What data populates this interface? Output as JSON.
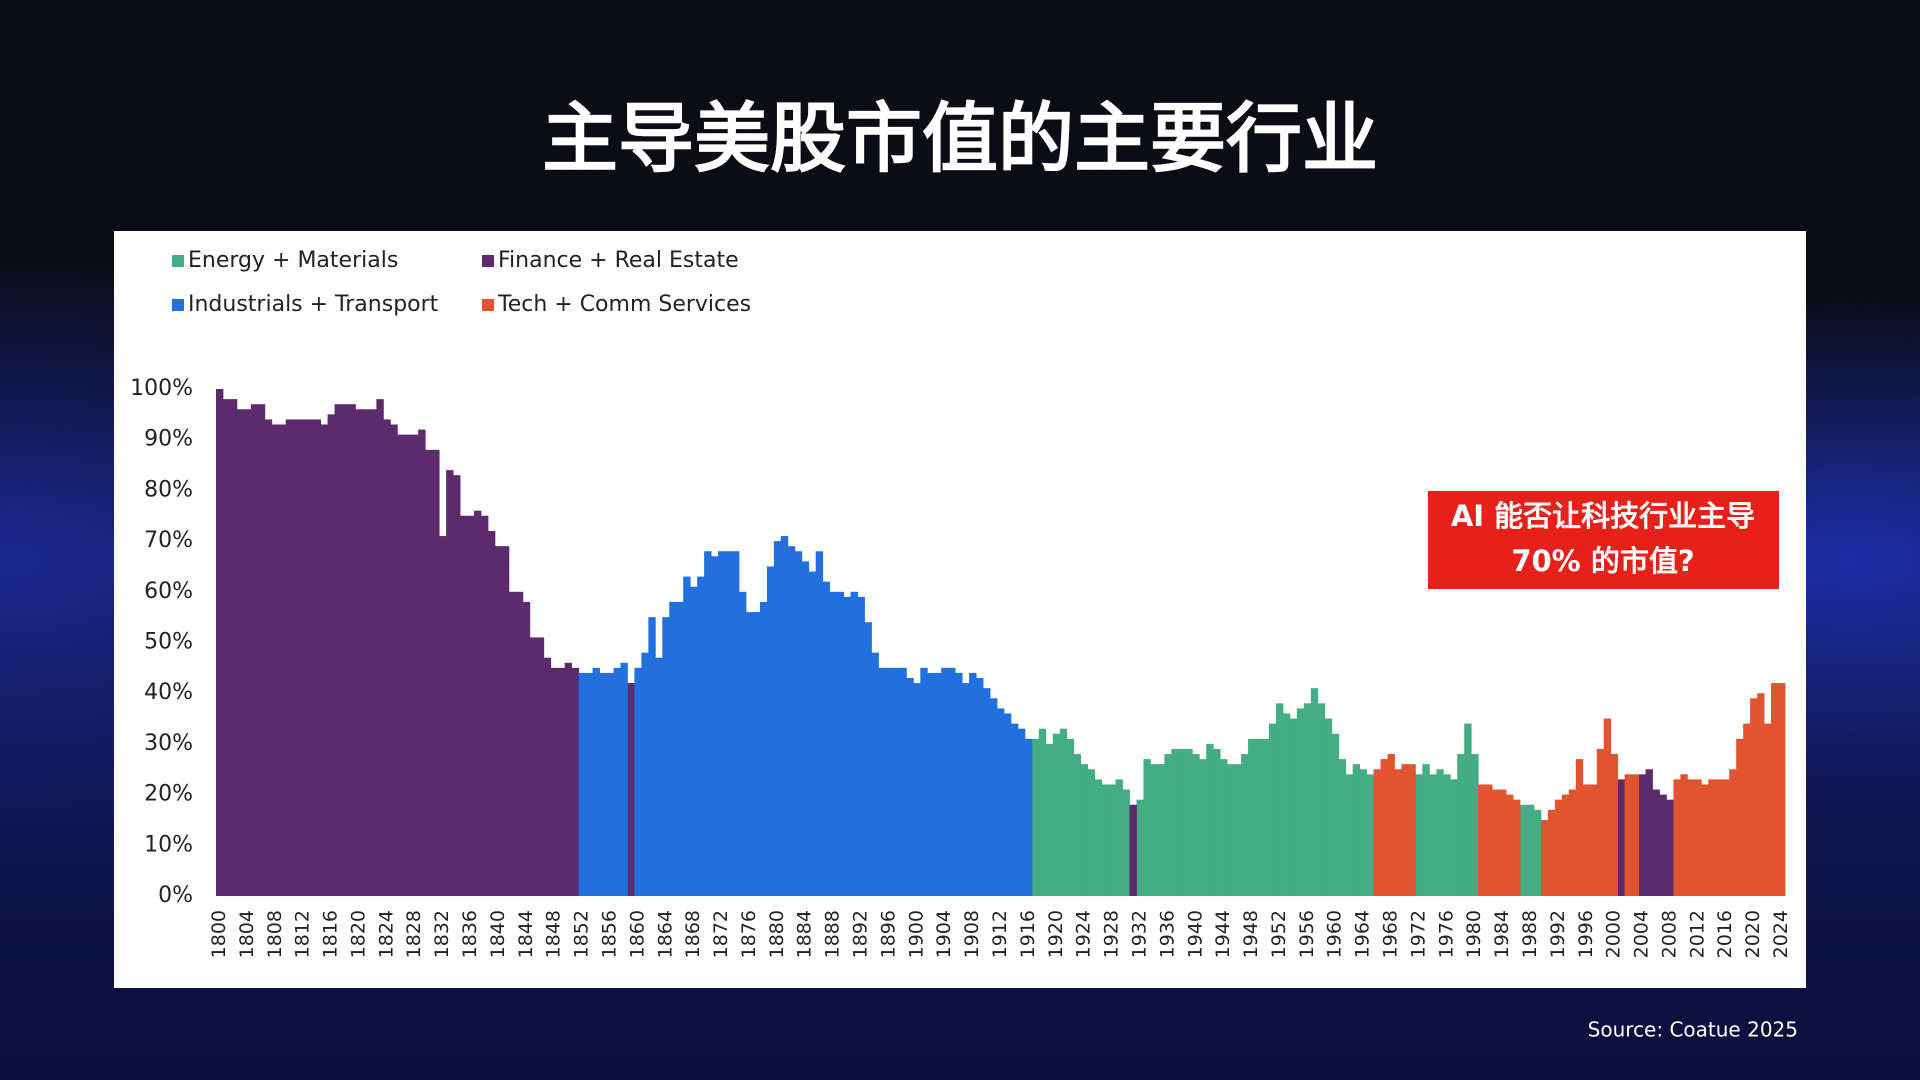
{
  "chart_data": {
    "type": "bar",
    "title": "主导美股市值的主要行业",
    "annotation": [
      "AI 能否让科技行业主导",
      "70% 的市值?"
    ],
    "source": "Source: Coatue 2025",
    "ylim": [
      0,
      100
    ],
    "yticks": [
      {
        "value": 0,
        "label": "0%"
      },
      {
        "value": 10,
        "label": "10%"
      },
      {
        "value": 20,
        "label": "20%"
      },
      {
        "value": 30,
        "label": "30%"
      },
      {
        "value": 40,
        "label": "40%"
      },
      {
        "value": 50,
        "label": "50%"
      },
      {
        "value": 60,
        "label": "60%"
      },
      {
        "value": 70,
        "label": "70%"
      },
      {
        "value": 80,
        "label": "80%"
      },
      {
        "value": 90,
        "label": "90%"
      },
      {
        "value": 100,
        "label": "100%"
      }
    ],
    "grid": false,
    "categories": [
      "1800",
      null,
      null,
      null,
      "1804",
      null,
      null,
      null,
      "1808",
      null,
      null,
      null,
      "1812",
      null,
      null,
      null,
      "1816",
      null,
      null,
      null,
      "1820",
      null,
      null,
      null,
      "1824",
      null,
      null,
      null,
      "1828",
      null,
      null,
      null,
      "1832",
      null,
      null,
      null,
      "1836",
      null,
      null,
      null,
      "1840",
      null,
      null,
      null,
      "1844",
      null,
      null,
      null,
      "1848",
      null,
      null,
      null,
      "1852",
      null,
      null,
      null,
      "1856",
      null,
      null,
      null,
      "1860",
      null,
      null,
      null,
      "1864",
      null,
      null,
      null,
      "1868",
      null,
      null,
      null,
      "1872",
      null,
      null,
      null,
      "1876",
      null,
      null,
      null,
      "1880",
      null,
      null,
      null,
      "1884",
      null,
      null,
      null,
      "1888",
      null,
      null,
      null,
      "1892",
      null,
      null,
      null,
      "1896",
      null,
      null,
      null,
      "1900",
      null,
      null,
      null,
      "1904",
      null,
      null,
      null,
      "1908",
      null,
      null,
      null,
      "1912",
      null,
      null,
      null,
      "1916",
      null,
      null,
      null,
      "1920",
      null,
      null,
      null,
      "1924",
      null,
      null,
      null,
      "1928",
      null,
      null,
      null,
      "1932",
      null,
      null,
      null,
      "1936",
      null,
      null,
      null,
      "1940",
      null,
      null,
      null,
      "1944",
      null,
      null,
      null,
      "1948",
      null,
      null,
      null,
      "1952",
      null,
      null,
      null,
      "1956",
      null,
      null,
      null,
      "1960",
      null,
      null,
      null,
      "1964",
      null,
      null,
      null,
      "1968",
      null,
      null,
      null,
      "1972",
      null,
      null,
      null,
      "1976",
      null,
      null,
      null,
      "1980",
      null,
      null,
      null,
      "1984",
      null,
      null,
      null,
      "1988",
      null,
      null,
      null,
      "1992",
      null,
      null,
      null,
      "1996",
      null,
      null,
      null,
      "2000",
      null,
      null,
      null,
      "2004",
      null,
      null,
      null,
      "2008",
      null,
      null,
      null,
      "2012",
      null,
      null,
      null,
      "2016",
      null,
      null,
      null,
      "2020",
      null,
      null,
      null,
      "2024"
    ],
    "series": [
      {
        "name": "Energy + Materials",
        "color": "#45ad83",
        "values": [
          null,
          null,
          null,
          null,
          null,
          null,
          null,
          null,
          null,
          null,
          null,
          null,
          null,
          null,
          null,
          null,
          null,
          null,
          null,
          null,
          null,
          null,
          null,
          null,
          null,
          null,
          null,
          null,
          null,
          null,
          null,
          null,
          null,
          null,
          null,
          null,
          null,
          null,
          null,
          null,
          null,
          null,
          null,
          null,
          null,
          null,
          null,
          null,
          null,
          null,
          null,
          null,
          null,
          null,
          null,
          null,
          null,
          null,
          null,
          null,
          null,
          null,
          null,
          null,
          null,
          null,
          null,
          null,
          null,
          null,
          null,
          null,
          null,
          null,
          null,
          null,
          null,
          null,
          null,
          null,
          null,
          null,
          null,
          null,
          null,
          null,
          null,
          null,
          null,
          null,
          null,
          null,
          null,
          null,
          null,
          null,
          null,
          null,
          null,
          null,
          null,
          null,
          null,
          null,
          null,
          null,
          null,
          null,
          null,
          null,
          null,
          null,
          null,
          null,
          null,
          null,
          null,
          31,
          33,
          30,
          32,
          33,
          31,
          28,
          26,
          25,
          23,
          22,
          22,
          23,
          21,
          null,
          19,
          27,
          26,
          26,
          28,
          29,
          29,
          29,
          28,
          27,
          30,
          29,
          27,
          26,
          26,
          28,
          31,
          31,
          31,
          34,
          38,
          36,
          35,
          37,
          38,
          41,
          38,
          35,
          32,
          27,
          24,
          26,
          25,
          24,
          null,
          null,
          null,
          null,
          null,
          null,
          24,
          26,
          24,
          25,
          24,
          23,
          28,
          34,
          28,
          null,
          null,
          null,
          null,
          null,
          null,
          18,
          18,
          17,
          null,
          null,
          null,
          null,
          null,
          null,
          null,
          null,
          null,
          null,
          null,
          null,
          null,
          null,
          null,
          null,
          null,
          null,
          null,
          null,
          null,
          null,
          null,
          null,
          null,
          null,
          null,
          null,
          null,
          null,
          null,
          null,
          null,
          null,
          null
        ]
      },
      {
        "name": "Finance + Real Estate",
        "color": "#5e2a6e",
        "values": [
          100,
          98,
          98,
          96,
          96,
          97,
          97,
          94,
          93,
          93,
          94,
          94,
          94,
          94,
          94,
          93,
          95,
          97,
          97,
          97,
          96,
          96,
          96,
          98,
          94,
          93,
          91,
          91,
          91,
          92,
          88,
          88,
          71,
          84,
          83,
          75,
          75,
          76,
          75,
          72,
          69,
          69,
          60,
          60,
          58,
          51,
          51,
          47,
          45,
          45,
          46,
          45,
          null,
          null,
          null,
          null,
          null,
          null,
          null,
          42,
          null,
          null,
          null,
          null,
          null,
          null,
          null,
          null,
          null,
          null,
          null,
          null,
          null,
          null,
          null,
          null,
          null,
          null,
          null,
          null,
          null,
          null,
          null,
          null,
          null,
          null,
          null,
          null,
          null,
          null,
          null,
          null,
          null,
          null,
          null,
          null,
          null,
          null,
          null,
          null,
          null,
          null,
          null,
          null,
          null,
          null,
          null,
          null,
          null,
          null,
          null,
          null,
          null,
          null,
          null,
          null,
          null,
          null,
          null,
          null,
          null,
          null,
          null,
          null,
          null,
          null,
          null,
          null,
          null,
          null,
          null,
          18,
          null,
          null,
          null,
          null,
          null,
          null,
          null,
          null,
          null,
          null,
          null,
          null,
          null,
          null,
          null,
          null,
          null,
          null,
          null,
          null,
          null,
          null,
          null,
          null,
          null,
          null,
          null,
          null,
          null,
          null,
          null,
          null,
          null,
          null,
          null,
          null,
          null,
          null,
          null,
          null,
          null,
          null,
          null,
          null,
          null,
          null,
          null,
          null,
          null,
          null,
          null,
          null,
          null,
          null,
          null,
          null,
          null,
          null,
          null,
          null,
          null,
          null,
          null,
          null,
          null,
          null,
          null,
          null,
          null,
          23,
          null,
          null,
          24,
          25,
          21,
          20,
          19,
          null,
          null,
          null,
          null,
          null,
          null,
          null,
          null,
          null,
          null,
          null,
          null,
          null,
          null,
          null,
          null
        ]
      },
      {
        "name": "Industrials + Transport",
        "color": "#2270dd",
        "values": [
          null,
          null,
          null,
          null,
          null,
          null,
          null,
          null,
          null,
          null,
          null,
          null,
          null,
          null,
          null,
          null,
          null,
          null,
          null,
          null,
          null,
          null,
          null,
          null,
          null,
          null,
          null,
          null,
          null,
          null,
          null,
          null,
          null,
          null,
          null,
          null,
          null,
          null,
          null,
          null,
          null,
          null,
          null,
          null,
          null,
          null,
          null,
          null,
          null,
          null,
          null,
          null,
          44,
          44,
          45,
          44,
          44,
          45,
          46,
          null,
          45,
          48,
          55,
          47,
          55,
          58,
          58,
          63,
          61,
          63,
          68,
          67,
          68,
          68,
          68,
          60,
          56,
          56,
          58,
          65,
          70,
          71,
          69,
          68,
          66,
          64,
          68,
          62,
          60,
          60,
          59,
          60,
          59,
          54,
          48,
          45,
          45,
          45,
          45,
          43,
          42,
          45,
          44,
          44,
          45,
          45,
          44,
          42,
          44,
          43,
          41,
          39,
          37,
          36,
          34,
          33,
          31,
          null,
          null,
          null,
          null,
          null,
          null,
          null,
          null,
          null,
          null,
          null,
          null,
          null,
          null,
          null,
          null,
          null,
          null,
          null,
          null,
          null,
          null,
          null,
          null,
          null,
          null,
          null,
          null,
          null,
          null,
          null,
          null,
          null,
          null,
          null,
          null,
          null,
          null,
          null,
          null,
          null,
          null,
          null,
          null,
          null,
          null,
          null,
          null,
          null,
          null,
          null,
          null,
          null,
          null,
          null,
          null,
          null,
          null,
          null,
          null,
          null,
          null,
          null,
          null,
          null,
          null,
          null,
          null,
          null,
          null,
          null,
          null,
          null,
          null,
          null,
          null,
          null,
          null,
          null,
          null,
          null,
          null,
          null,
          null,
          null,
          null,
          null,
          null,
          null,
          null,
          null,
          null,
          null,
          null,
          null,
          null,
          null,
          null,
          null,
          null,
          null,
          null,
          null,
          null,
          null,
          null,
          null,
          null
        ]
      },
      {
        "name": "Tech + Comm Services",
        "color": "#e05530",
        "values": [
          null,
          null,
          null,
          null,
          null,
          null,
          null,
          null,
          null,
          null,
          null,
          null,
          null,
          null,
          null,
          null,
          null,
          null,
          null,
          null,
          null,
          null,
          null,
          null,
          null,
          null,
          null,
          null,
          null,
          null,
          null,
          null,
          null,
          null,
          null,
          null,
          null,
          null,
          null,
          null,
          null,
          null,
          null,
          null,
          null,
          null,
          null,
          null,
          null,
          null,
          null,
          null,
          null,
          null,
          null,
          null,
          null,
          null,
          null,
          null,
          null,
          null,
          null,
          null,
          null,
          null,
          null,
          null,
          null,
          null,
          null,
          null,
          null,
          null,
          null,
          null,
          null,
          null,
          null,
          null,
          null,
          null,
          null,
          null,
          null,
          null,
          null,
          null,
          null,
          null,
          null,
          null,
          null,
          null,
          null,
          null,
          null,
          null,
          null,
          null,
          null,
          null,
          null,
          null,
          null,
          null,
          null,
          null,
          null,
          null,
          null,
          null,
          null,
          null,
          null,
          null,
          null,
          null,
          null,
          null,
          null,
          null,
          null,
          null,
          null,
          null,
          null,
          null,
          null,
          null,
          null,
          null,
          null,
          null,
          null,
          null,
          null,
          null,
          null,
          null,
          null,
          null,
          null,
          null,
          null,
          null,
          null,
          null,
          null,
          null,
          null,
          null,
          null,
          null,
          null,
          null,
          null,
          null,
          null,
          null,
          null,
          null,
          null,
          null,
          null,
          null,
          25,
          27,
          28,
          25,
          26,
          26,
          null,
          null,
          null,
          null,
          null,
          null,
          null,
          null,
          null,
          22,
          22,
          21,
          21,
          20,
          19,
          null,
          null,
          null,
          15,
          17,
          19,
          20,
          21,
          27,
          22,
          22,
          29,
          35,
          28,
          null,
          24,
          24,
          null,
          null,
          null,
          null,
          null,
          23,
          24,
          23,
          23,
          22,
          23,
          23,
          23,
          25,
          31,
          34,
          39,
          40,
          34,
          42,
          42
        ]
      }
    ]
  }
}
